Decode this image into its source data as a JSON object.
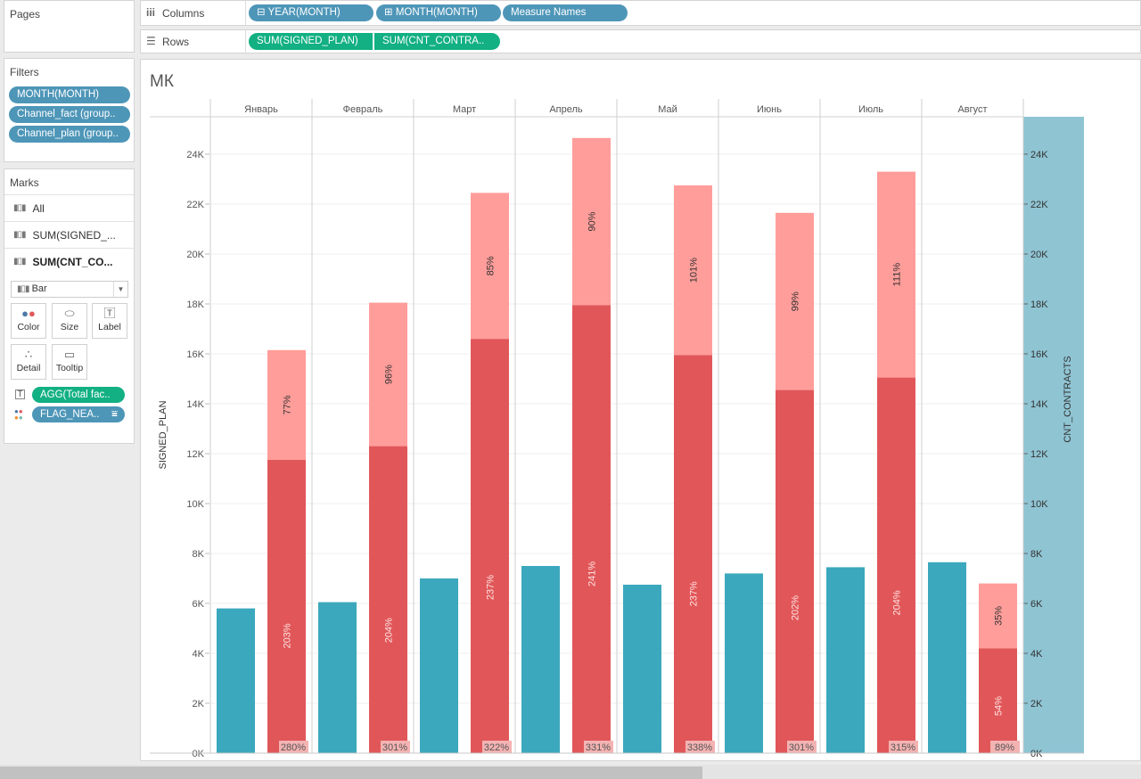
{
  "shelves": {
    "pages_label": "Pages",
    "columns_label": "Columns",
    "rows_label": "Rows",
    "columns_pills": [
      "YEAR(MONTH)",
      "MONTH(MONTH)",
      "Measure Names"
    ],
    "rows_pills": [
      "SUM(SIGNED_PLAN)",
      "SUM(CNT_CONTRA.."
    ]
  },
  "filters": {
    "title": "Filters",
    "items": [
      "MONTH(MONTH)",
      "Channel_fact (group..",
      "Channel_plan (group.."
    ]
  },
  "marks": {
    "title": "Marks",
    "rows": [
      "All",
      "SUM(SIGNED_...",
      "SUM(CNT_CO..."
    ],
    "mark_type": "Bar",
    "buttons": [
      "Color",
      "Size",
      "Label",
      "Detail",
      "Tooltip"
    ],
    "field_pills": [
      "AGG(Total fac..",
      "FLAG_NEA.."
    ]
  },
  "colors": {
    "teal": "#3ba8bd",
    "red": "#e15759",
    "pink": "#ff9d9a",
    "axis_bg": "#8fc4d3",
    "pill_blue": "#4e96b8",
    "pill_green": "#12b083"
  },
  "chart_data": {
    "type": "bar",
    "title": "МК",
    "categories": [
      "Январь",
      "Февраль",
      "Март",
      "Апрель",
      "Май",
      "Июнь",
      "Июль",
      "Август"
    ],
    "left_axis_label": "SIGNED_PLAN",
    "right_axis_label": "CNT_CONTRACTS",
    "ylim": [
      0,
      25500
    ],
    "ticks": [
      0,
      2000,
      4000,
      6000,
      8000,
      10000,
      12000,
      14000,
      16000,
      18000,
      20000,
      22000,
      24000
    ],
    "tick_labels": [
      "0K",
      "2K",
      "4K",
      "6K",
      "8K",
      "10K",
      "12K",
      "14K",
      "16K",
      "18K",
      "20K",
      "22K",
      "24K"
    ],
    "series": [
      {
        "name": "SIGNED_PLAN",
        "values": [
          5800,
          6050,
          7000,
          7500,
          6750,
          7200,
          7450,
          7650
        ]
      },
      {
        "values": [
          11750,
          12300,
          16600,
          17950,
          15950,
          14550,
          15050,
          4200
        ]
      },
      {
        "values": [
          16150,
          18050,
          22450,
          24650,
          22750,
          21650,
          23300,
          6800
        ]
      }
    ],
    "labels_lower": [
      "203%",
      "204%",
      "237%",
      "241%",
      "237%",
      "202%",
      "204%",
      "54%"
    ],
    "labels_upper": [
      "77%",
      "96%",
      "85%",
      "90%",
      "101%",
      "99%",
      "111%",
      "35%"
    ],
    "labels_bottom": [
      "280%",
      "301%",
      "322%",
      "331%",
      "338%",
      "301%",
      "315%",
      "89%"
    ]
  }
}
